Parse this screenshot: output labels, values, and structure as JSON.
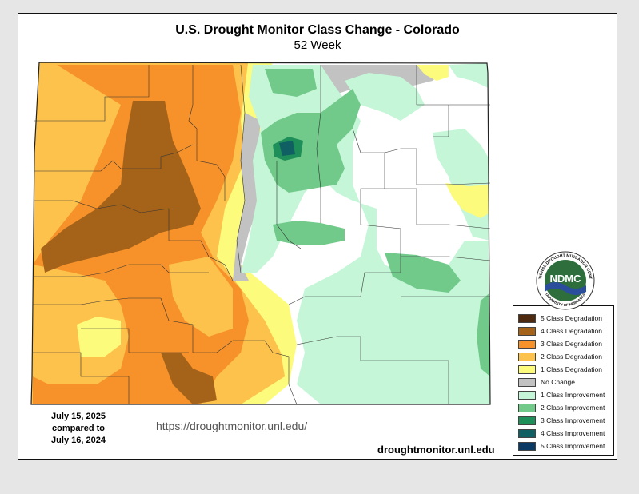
{
  "header": {
    "title": "U.S. Drought Monitor Class Change - Colorado",
    "subtitle": "52 Week"
  },
  "dates": {
    "line1": "July 15, 2025",
    "line2": "compared to",
    "line3": "July 16, 2024"
  },
  "url_center": "https://droughtmonitor.unl.edu/",
  "url_right": "droughtmonitor.unl.edu",
  "logo": {
    "label": "NDMC",
    "ring_text": "NATIONAL DROUGHT MITIGATION CENTER",
    "bottom_text": "UNIVERSITY OF NEBRASKA"
  },
  "legend": [
    {
      "label": "5 Class Degradation",
      "color": "#4d2a10"
    },
    {
      "label": "4 Class Degradation",
      "color": "#a5631a"
    },
    {
      "label": "3 Class Degradation",
      "color": "#f7922b"
    },
    {
      "label": "2 Class Degradation",
      "color": "#fcc24c"
    },
    {
      "label": "1 Class Degradation",
      "color": "#fdfb7c"
    },
    {
      "label": "No Change",
      "color": "#c2c2c2"
    },
    {
      "label": "1 Class Improvement",
      "color": "#c4f6d7"
    },
    {
      "label": "2 Class Improvement",
      "color": "#71c98a"
    },
    {
      "label": "3 Class Improvement",
      "color": "#1f8f5a"
    },
    {
      "label": "4 Class Improvement",
      "color": "#0f5f63"
    },
    {
      "label": "5 Class Improvement",
      "color": "#0a3a63"
    }
  ]
}
